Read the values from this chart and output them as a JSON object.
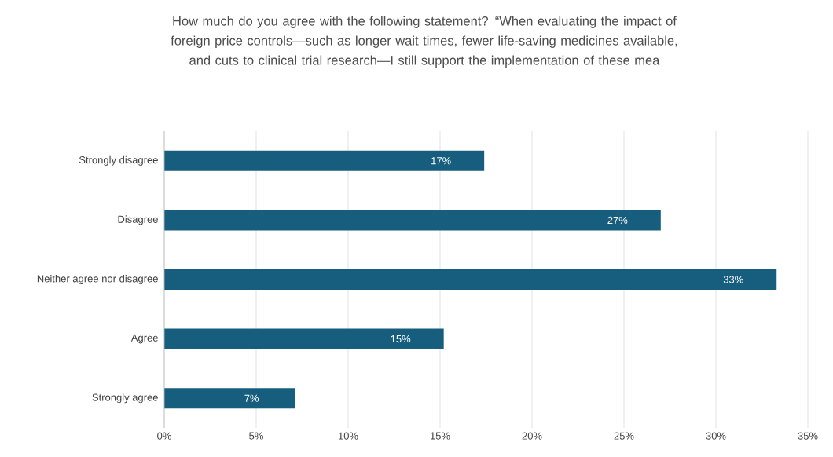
{
  "chart_data": {
    "type": "bar",
    "orientation": "horizontal",
    "title": "How much do you agree with the following statement? “When evaluating the impact of foreign price controls—such as longer wait times, fewer life-saving medicines available, and cuts to clinical trial research—I still support the implementation of these mea",
    "categories": [
      "Strongly disagree",
      "Disagree",
      "Neither agree nor disagree",
      "Agree",
      "Strongly agree"
    ],
    "values": [
      17.4,
      27.0,
      33.3,
      15.2,
      7.1
    ],
    "value_labels": [
      "17%",
      "27%",
      "33%",
      "15%",
      "7%"
    ],
    "color": "#175e7e",
    "xlim": [
      0,
      35
    ],
    "xticks": [
      {
        "value": 0,
        "label": "0%"
      },
      {
        "value": 5,
        "label": "5%"
      },
      {
        "value": 10,
        "label": "10%"
      },
      {
        "value": 15,
        "label": "15%"
      },
      {
        "value": 20,
        "label": "20%"
      },
      {
        "value": 25,
        "label": "25%"
      },
      {
        "value": 30,
        "label": "30%"
      },
      {
        "value": 35,
        "label": "35%"
      }
    ],
    "grid": "x"
  }
}
